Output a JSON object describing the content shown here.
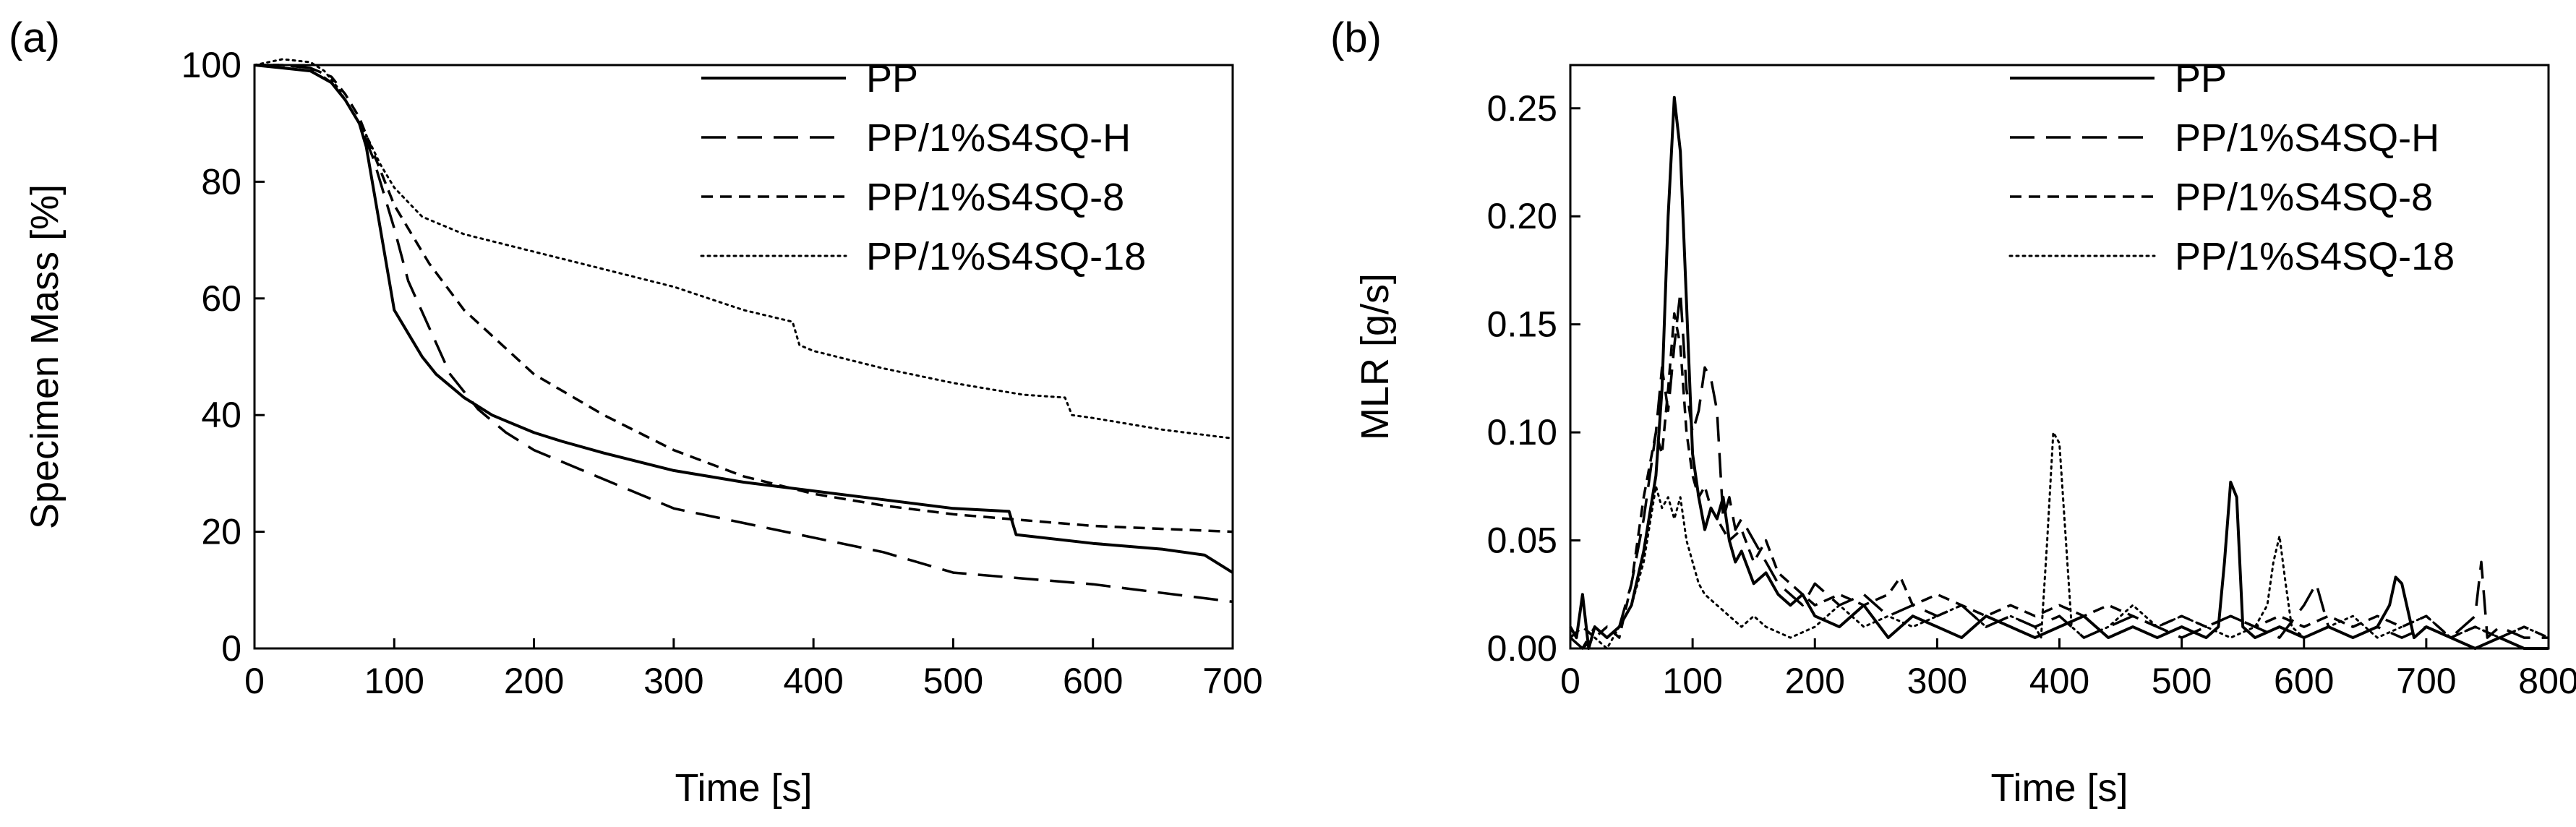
{
  "figure": {
    "panel_labels": [
      "(a)",
      "(b)"
    ]
  },
  "chart_data": [
    {
      "type": "line",
      "panel": "(a)",
      "title": "",
      "xlabel": "Time [s]",
      "ylabel": "Specimen Mass [%]",
      "xlim": [
        0,
        700
      ],
      "ylim": [
        0,
        100
      ],
      "xticks": [
        0,
        100,
        200,
        300,
        400,
        500,
        600,
        700
      ],
      "yticks": [
        0,
        20,
        40,
        60,
        80,
        100
      ],
      "xtick_labels": [
        "0",
        "100",
        "200",
        "300",
        "400",
        "500",
        "600",
        "700"
      ],
      "ytick_labels": [
        "0",
        "20",
        "40",
        "60",
        "80",
        "100"
      ],
      "legend_position": "top-right",
      "grid": false,
      "series": [
        {
          "name": "PP",
          "style": "solid",
          "x": [
            0,
            20,
            40,
            55,
            65,
            75,
            80,
            90,
            100,
            110,
            120,
            130,
            140,
            150,
            160,
            170,
            180,
            200,
            220,
            250,
            300,
            350,
            400,
            450,
            500,
            540,
            545,
            600,
            650,
            680,
            700
          ],
          "y": [
            100,
            99.5,
            99,
            97,
            94,
            90,
            86,
            72,
            58,
            54,
            50,
            47,
            45,
            43,
            41.5,
            40,
            39,
            37,
            35.5,
            33.5,
            30.5,
            28.5,
            27,
            25.5,
            24,
            23.5,
            19.5,
            18,
            17,
            16,
            13
          ]
        },
        {
          "name": "PP/1%S4SQ-H",
          "style": "longdash",
          "x": [
            0,
            20,
            40,
            55,
            65,
            75,
            85,
            100,
            110,
            125,
            140,
            150,
            160,
            180,
            200,
            250,
            300,
            350,
            400,
            450,
            500,
            550,
            600,
            650,
            700
          ],
          "y": [
            100,
            100,
            99.5,
            97,
            94,
            90,
            84,
            72,
            63,
            55,
            47,
            44,
            41,
            37,
            34,
            29,
            24,
            21.5,
            19,
            16.5,
            13,
            12,
            11,
            9.5,
            8
          ]
        },
        {
          "name": "PP/1%S4SQ-8",
          "style": "shortdash",
          "x": [
            0,
            20,
            40,
            55,
            65,
            75,
            85,
            100,
            110,
            125,
            150,
            200,
            250,
            300,
            350,
            400,
            450,
            500,
            550,
            600,
            650,
            700
          ],
          "y": [
            100,
            100,
            99.5,
            98,
            95,
            91,
            85,
            76,
            72,
            66,
            58,
            47,
            40,
            34,
            29.5,
            26.5,
            24.5,
            23,
            22,
            21,
            20.5,
            20
          ]
        },
        {
          "name": "PP/1%S4SQ-18",
          "style": "dotted",
          "x": [
            0,
            20,
            40,
            50,
            60,
            70,
            80,
            90,
            100,
            120,
            150,
            200,
            250,
            300,
            350,
            385,
            390,
            400,
            450,
            500,
            550,
            580,
            585,
            600,
            650,
            700
          ],
          "y": [
            100,
            101,
            100.5,
            99,
            96,
            92,
            88,
            83,
            79,
            74,
            71,
            68,
            65,
            62,
            58,
            56,
            52,
            51,
            48,
            45.5,
            43.5,
            43,
            40,
            39.5,
            37.5,
            36
          ]
        }
      ]
    },
    {
      "type": "line",
      "panel": "(b)",
      "title": "",
      "xlabel": "Time [s]",
      "ylabel": "MLR [g/s]",
      "xlim": [
        0,
        800
      ],
      "ylim": [
        0,
        0.27
      ],
      "xticks": [
        0,
        100,
        200,
        300,
        400,
        500,
        600,
        700,
        800
      ],
      "yticks": [
        0,
        0.05,
        0.1,
        0.15,
        0.2,
        0.25
      ],
      "xtick_labels": [
        "0",
        "100",
        "200",
        "300",
        "400",
        "500",
        "600",
        "700",
        "800"
      ],
      "ytick_labels": [
        "0.00",
        "0.05",
        "0.10",
        "0.15",
        "0.20",
        "0.25"
      ],
      "legend_position": "top-right",
      "grid": false,
      "series": [
        {
          "name": "PP",
          "style": "solid",
          "x": [
            0,
            5,
            10,
            15,
            20,
            30,
            40,
            50,
            60,
            70,
            75,
            80,
            85,
            90,
            95,
            100,
            105,
            110,
            115,
            120,
            125,
            130,
            135,
            140,
            150,
            160,
            170,
            180,
            190,
            200,
            220,
            240,
            260,
            280,
            300,
            320,
            340,
            360,
            380,
            400,
            420,
            440,
            460,
            480,
            500,
            520,
            530,
            535,
            540,
            545,
            550,
            560,
            580,
            600,
            620,
            640,
            660,
            670,
            675,
            680,
            690,
            700,
            720,
            740,
            760,
            780,
            800
          ],
          "y": [
            0.01,
            0.005,
            0.025,
            0.0,
            0.01,
            0.005,
            0.01,
            0.02,
            0.045,
            0.08,
            0.12,
            0.2,
            0.255,
            0.23,
            0.16,
            0.09,
            0.07,
            0.055,
            0.065,
            0.06,
            0.07,
            0.05,
            0.04,
            0.045,
            0.03,
            0.035,
            0.025,
            0.02,
            0.025,
            0.015,
            0.01,
            0.02,
            0.005,
            0.015,
            0.01,
            0.005,
            0.015,
            0.01,
            0.005,
            0.01,
            0.015,
            0.005,
            0.01,
            0.005,
            0.01,
            0.005,
            0.01,
            0.04,
            0.077,
            0.07,
            0.01,
            0.005,
            0.01,
            0.005,
            0.01,
            0.005,
            0.01,
            0.02,
            0.033,
            0.03,
            0.005,
            0.01,
            0.005,
            0.0,
            0.005,
            0.0,
            0.0
          ]
        },
        {
          "name": "PP/1%S4SQ-H",
          "style": "longdash",
          "x": [
            0,
            10,
            20,
            30,
            40,
            50,
            60,
            70,
            75,
            80,
            85,
            90,
            95,
            100,
            105,
            110,
            115,
            120,
            125,
            130,
            135,
            140,
            150,
            160,
            170,
            180,
            190,
            200,
            220,
            240,
            260,
            280,
            300,
            320,
            340,
            360,
            380,
            400,
            420,
            440,
            460,
            480,
            500,
            520,
            540,
            560,
            580,
            600,
            610,
            620,
            640,
            660,
            680,
            700,
            720,
            740,
            745,
            750,
            760,
            780,
            800
          ],
          "y": [
            0.005,
            0.0,
            0.01,
            0.005,
            0.01,
            0.03,
            0.06,
            0.1,
            0.13,
            0.11,
            0.14,
            0.165,
            0.12,
            0.1,
            0.11,
            0.13,
            0.125,
            0.11,
            0.06,
            0.07,
            0.055,
            0.06,
            0.05,
            0.04,
            0.03,
            0.025,
            0.02,
            0.03,
            0.02,
            0.025,
            0.015,
            0.02,
            0.015,
            0.02,
            0.01,
            0.015,
            0.01,
            0.015,
            0.005,
            0.01,
            0.015,
            0.01,
            0.005,
            0.01,
            0.015,
            0.01,
            0.005,
            0.02,
            0.03,
            0.01,
            0.005,
            0.01,
            0.005,
            0.01,
            0.005,
            0.015,
            0.04,
            0.005,
            0.01,
            0.005,
            0.005
          ]
        },
        {
          "name": "PP/1%S4SQ-8",
          "style": "shortdash",
          "x": [
            0,
            10,
            20,
            30,
            40,
            50,
            60,
            70,
            75,
            80,
            85,
            90,
            95,
            100,
            105,
            110,
            115,
            120,
            130,
            140,
            150,
            160,
            170,
            180,
            190,
            200,
            220,
            240,
            260,
            270,
            280,
            300,
            320,
            340,
            360,
            380,
            400,
            420,
            440,
            460,
            480,
            500,
            520,
            540,
            560,
            580,
            600,
            620,
            640,
            660,
            680,
            700,
            720,
            740,
            760,
            780,
            800
          ],
          "y": [
            0.005,
            0.01,
            0.005,
            0.01,
            0.005,
            0.03,
            0.07,
            0.1,
            0.09,
            0.12,
            0.155,
            0.14,
            0.1,
            0.08,
            0.07,
            0.075,
            0.065,
            0.06,
            0.05,
            0.055,
            0.04,
            0.05,
            0.035,
            0.03,
            0.025,
            0.02,
            0.025,
            0.02,
            0.025,
            0.033,
            0.02,
            0.025,
            0.02,
            0.015,
            0.02,
            0.015,
            0.02,
            0.015,
            0.02,
            0.015,
            0.01,
            0.015,
            0.01,
            0.015,
            0.01,
            0.015,
            0.01,
            0.015,
            0.01,
            0.015,
            0.01,
            0.015,
            0.005,
            0.01,
            0.005,
            0.01,
            0.005
          ]
        },
        {
          "name": "PP/1%S4SQ-18",
          "style": "dotted",
          "x": [
            0,
            10,
            20,
            30,
            40,
            50,
            60,
            70,
            75,
            80,
            85,
            90,
            95,
            100,
            105,
            110,
            120,
            130,
            140,
            150,
            160,
            180,
            200,
            220,
            240,
            260,
            280,
            300,
            320,
            340,
            360,
            380,
            385,
            390,
            395,
            400,
            410,
            420,
            440,
            460,
            480,
            500,
            520,
            540,
            560,
            570,
            575,
            580,
            585,
            590,
            600,
            620,
            640,
            660,
            680,
            700,
            720,
            740,
            760,
            780,
            800
          ],
          "y": [
            0.005,
            0.0,
            0.005,
            0.0,
            0.01,
            0.02,
            0.04,
            0.075,
            0.065,
            0.07,
            0.06,
            0.07,
            0.05,
            0.04,
            0.03,
            0.025,
            0.02,
            0.015,
            0.01,
            0.015,
            0.01,
            0.005,
            0.01,
            0.02,
            0.01,
            0.015,
            0.01,
            0.015,
            0.02,
            0.01,
            0.015,
            0.01,
            0.005,
            0.05,
            0.1,
            0.095,
            0.01,
            0.005,
            0.01,
            0.02,
            0.01,
            0.015,
            0.01,
            0.005,
            0.01,
            0.02,
            0.04,
            0.052,
            0.03,
            0.01,
            0.005,
            0.01,
            0.015,
            0.005,
            0.01,
            0.015,
            0.005,
            0.01,
            0.005,
            0.01,
            0.005
          ]
        }
      ]
    }
  ]
}
